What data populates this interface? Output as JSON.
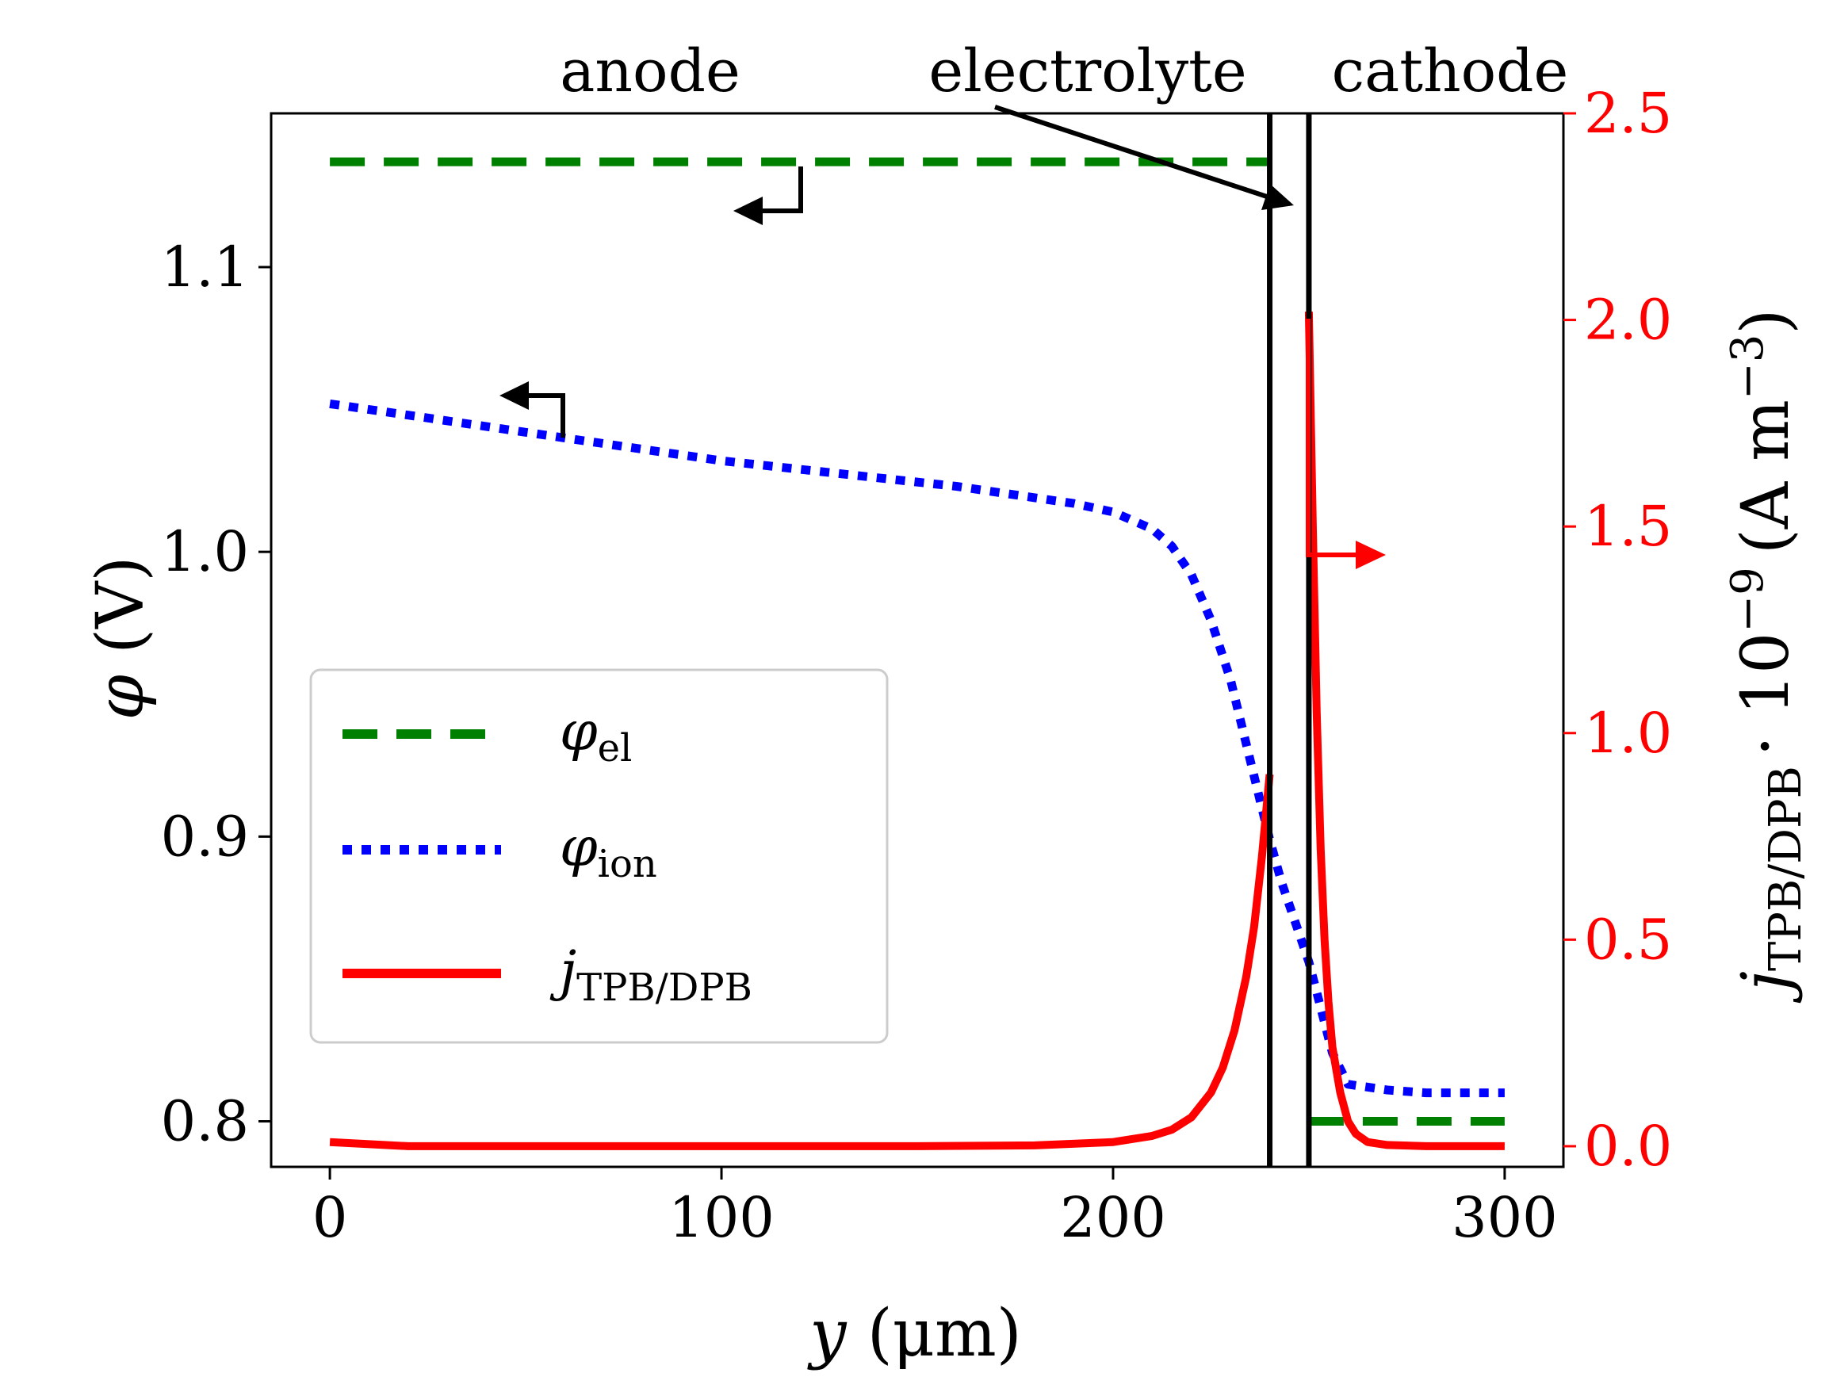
{
  "chart_data": {
    "type": "line",
    "xlabel": {
      "var": "y",
      "unit": "(μm)"
    },
    "ylabel_left": {
      "var": "φ",
      "unit": "(V)"
    },
    "ylabel_right": {
      "var": "j",
      "sub": "TPB/DPB",
      "mult": "· 10",
      "exp": "−9",
      "unit": "(A m",
      "unit_exp": "−3",
      "unit_close": ")"
    },
    "xlim": [
      -15,
      315
    ],
    "ylim_left": [
      0.784,
      1.154
    ],
    "ylim_right": [
      -0.05,
      2.5
    ],
    "x_ticks": [
      0,
      100,
      200,
      300
    ],
    "x_tick_labels": [
      "0",
      "100",
      "200",
      "300"
    ],
    "y_left_ticks": [
      0.8,
      0.9,
      1.0,
      1.1
    ],
    "y_left_tick_labels": [
      "0.8",
      "0.9",
      "1.0",
      "1.1"
    ],
    "y_right_ticks": [
      0.0,
      0.5,
      1.0,
      1.5,
      2.0,
      2.5
    ],
    "y_right_tick_labels": [
      "0.0",
      "0.5",
      "1.0",
      "1.5",
      "2.0",
      "2.5"
    ],
    "regions": {
      "anode_label": "anode",
      "electrolyte_label": "electrolyte",
      "cathode_label": "cathode",
      "interface_x": [
        240,
        250
      ]
    },
    "series": [
      {
        "name": "φel",
        "legend_var": "φ",
        "legend_sub": "el",
        "axis": "left",
        "style": "dashed",
        "color": "#008000",
        "segments": [
          {
            "x": [
              0,
              240
            ],
            "y": [
              1.137,
              1.137
            ]
          },
          {
            "x": [
              250,
              300
            ],
            "y": [
              0.8,
              0.8
            ]
          }
        ]
      },
      {
        "name": "φion",
        "legend_var": "φ",
        "legend_sub": "ion",
        "axis": "left",
        "style": "dotted",
        "color": "#0000ff",
        "x": [
          0,
          20,
          40,
          60,
          80,
          100,
          120,
          140,
          160,
          180,
          190,
          200,
          210,
          215,
          220,
          225,
          230,
          235,
          238,
          240,
          243,
          246,
          250,
          253,
          256,
          260,
          270,
          280,
          300
        ],
        "y": [
          1.052,
          1.048,
          1.044,
          1.04,
          1.036,
          1.032,
          1.029,
          1.026,
          1.023,
          1.019,
          1.017,
          1.014,
          1.008,
          1.002,
          0.992,
          0.976,
          0.955,
          0.927,
          0.91,
          0.899,
          0.884,
          0.872,
          0.856,
          0.84,
          0.824,
          0.813,
          0.811,
          0.81,
          0.81
        ]
      },
      {
        "name": "jTPB/DPB",
        "legend_var": "j",
        "legend_sub": "TPB/DPB",
        "axis": "right",
        "style": "solid",
        "color": "#ff0000",
        "segments": [
          {
            "x": [
              0,
              20,
              50,
              100,
              150,
              180,
              200,
              210,
              215,
              220,
              225,
              228,
              231,
              234,
              236,
              238,
              239,
              240
            ],
            "y": [
              0.01,
              0.0,
              0.0,
              0.0,
              0.0,
              0.002,
              0.01,
              0.025,
              0.04,
              0.07,
              0.13,
              0.19,
              0.28,
              0.41,
              0.53,
              0.7,
              0.8,
              0.9
            ]
          },
          {
            "x": [
              250,
              251,
              252,
              253,
              254,
              255,
              256,
              258,
              260,
              262,
              265,
              270,
              280,
              300
            ],
            "y": [
              2.02,
              1.5,
              1.05,
              0.72,
              0.5,
              0.35,
              0.24,
              0.13,
              0.06,
              0.03,
              0.01,
              0.003,
              0.0,
              0.0
            ]
          }
        ]
      }
    ],
    "annotations": [
      {
        "type": "axis-hint-arrow",
        "target": "φel",
        "points_to": "left-axis",
        "color": "#000000"
      },
      {
        "type": "axis-hint-arrow",
        "target": "φion",
        "points_to": "left-axis",
        "color": "#000000"
      },
      {
        "type": "axis-hint-arrow",
        "target": "jTPB/DPB",
        "points_to": "right-axis",
        "color": "#ff0000"
      },
      {
        "type": "pointer-arrow",
        "label": "electrolyte",
        "points_to": "electrolyte-region",
        "color": "#000000"
      }
    ],
    "legend_position": "lower-left"
  }
}
